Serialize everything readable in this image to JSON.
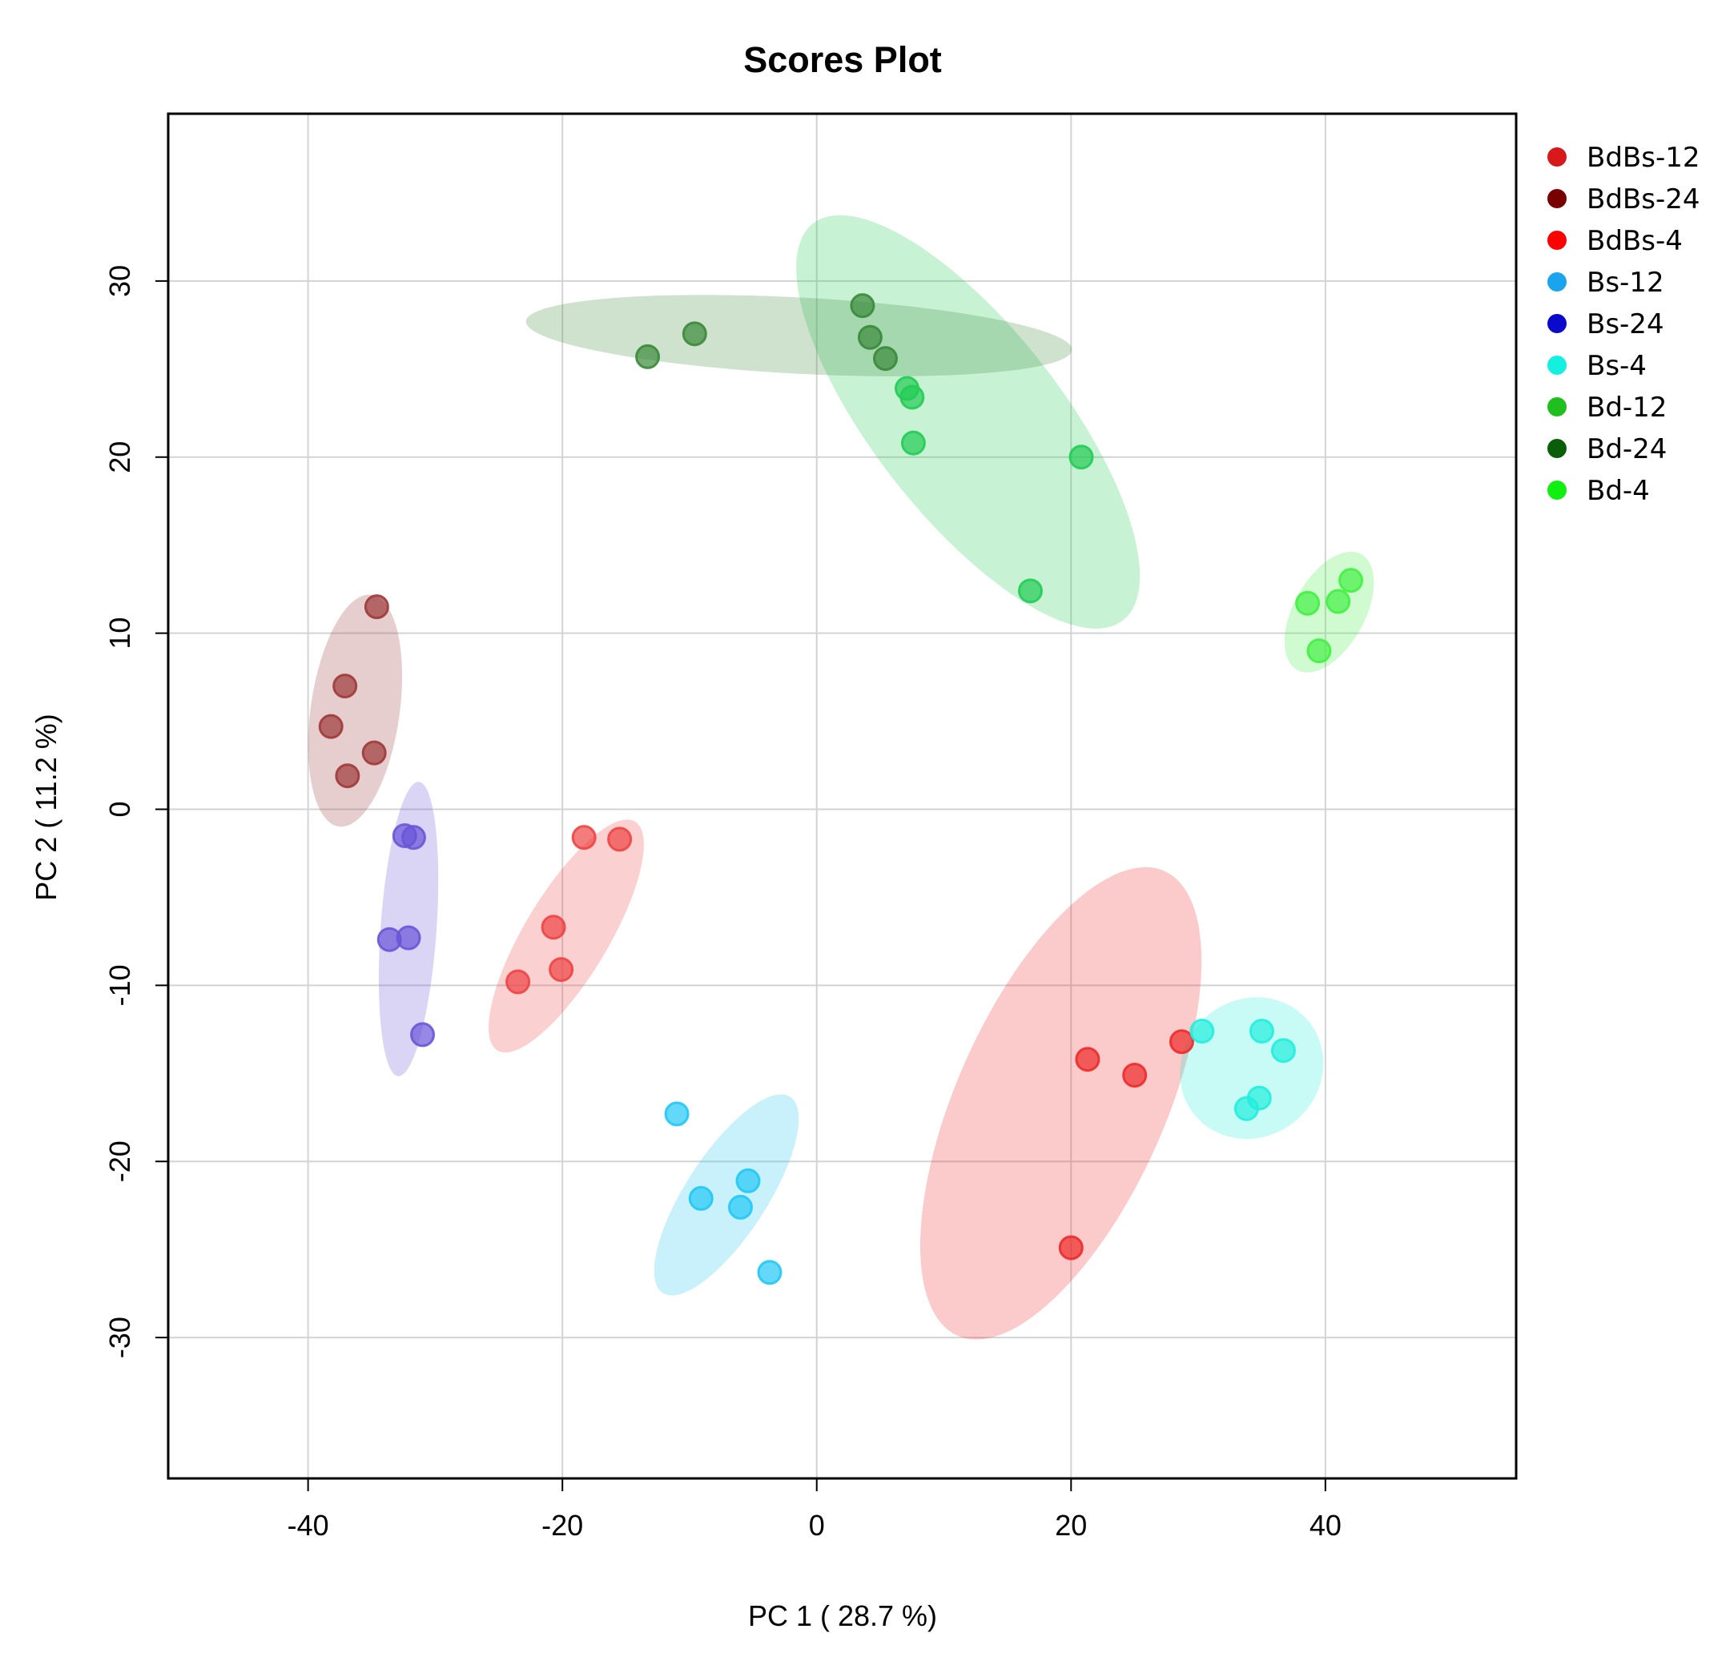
{
  "chart_data": {
    "type": "scatter",
    "title": "Scores Plot",
    "xlabel": "PC 1 ( 28.7 %)",
    "ylabel": "PC 2 ( 11.2 %)",
    "xlim": [
      -51,
      55
    ],
    "ylim": [
      -38,
      39.5
    ],
    "xticks": [
      -40,
      -20,
      0,
      20,
      40
    ],
    "yticks": [
      -30,
      -20,
      -10,
      0,
      10,
      20,
      30
    ],
    "xtick_labels": [
      "-40",
      "-20",
      "0",
      "20",
      "40"
    ],
    "ytick_labels": [
      "-30",
      "-20",
      "-10",
      "0",
      "10",
      "20",
      "30"
    ],
    "grid": true,
    "legend_position": "right",
    "series": [
      {
        "name": "BdBs-12",
        "color": "#EE2A2A",
        "legend_color": "#D7191C",
        "points": [
          [
            21.3,
            -14.2
          ],
          [
            25,
            -15.1
          ],
          [
            28.7,
            -13.2
          ],
          [
            20,
            -24.9
          ]
        ],
        "ellipse": {
          "cx": 19.2,
          "cy": -16.7,
          "a": 20.0,
          "b": 8.2,
          "angle": 66
        }
      },
      {
        "name": "BdBs-24",
        "color": "#9E3A3A",
        "legend_color": "#7A0000",
        "points": [
          [
            -34.6,
            11.5
          ],
          [
            -37.1,
            7
          ],
          [
            -38.2,
            4.7
          ],
          [
            -34.8,
            3.2
          ],
          [
            -36.9,
            1.9
          ]
        ],
        "ellipse": {
          "cx": -36.3,
          "cy": 5.6,
          "a": 9.2,
          "b": 3.5,
          "angle": 82
        }
      },
      {
        "name": "BdBs-4",
        "color": "#EE4444",
        "legend_color": "#FF0000",
        "points": [
          [
            -18.3,
            -1.6
          ],
          [
            -15.5,
            -1.7
          ],
          [
            -20.7,
            -6.7
          ],
          [
            -20.1,
            -9.1
          ],
          [
            -23.5,
            -9.8
          ]
        ],
        "ellipse": {
          "cx": -19.7,
          "cy": -7.2,
          "a": 10.5,
          "b": 3.3,
          "angle": 59
        }
      },
      {
        "name": "Bs-12",
        "color": "#22C8F5",
        "legend_color": "#1AA3EE",
        "points": [
          [
            -11,
            -17.3
          ],
          [
            -9.1,
            -22.1
          ],
          [
            -5.4,
            -21.1
          ],
          [
            -6,
            -22.6
          ],
          [
            -3.7,
            -26.3
          ]
        ],
        "ellipse": {
          "cx": -7.1,
          "cy": -21.9,
          "a": 9.2,
          "b": 3.2,
          "angle": 57
        }
      },
      {
        "name": "Bs-24",
        "color": "#6A55D8",
        "legend_color": "#0A0ACC",
        "points": [
          [
            -32.4,
            -1.5
          ],
          [
            -31.7,
            -1.6
          ],
          [
            -33.6,
            -7.4
          ],
          [
            -32.1,
            -7.3
          ],
          [
            -31,
            -12.8
          ]
        ],
        "ellipse": {
          "cx": -32.1,
          "cy": -6.8,
          "a": 11.6,
          "b": 2.2,
          "angle": 86
        }
      },
      {
        "name": "Bs-4",
        "color": "#22EEDD",
        "legend_color": "#14F0E0",
        "points": [
          [
            30.3,
            -12.6
          ],
          [
            35,
            -12.6
          ],
          [
            36.7,
            -13.7
          ],
          [
            34.8,
            -16.4
          ],
          [
            33.8,
            -17
          ]
        ],
        "ellipse": {
          "cx": 34.2,
          "cy": -14.7,
          "a": 5.8,
          "b": 5.4,
          "angle": 40
        }
      },
      {
        "name": "Bd-12",
        "color": "#22CC55",
        "legend_color": "#1FBF1F",
        "points": [
          [
            7.1,
            23.9
          ],
          [
            7.5,
            23.4
          ],
          [
            7.6,
            20.8
          ],
          [
            20.8,
            20
          ],
          [
            16.8,
            12.4
          ]
        ],
        "ellipse": {
          "cx": 11.9,
          "cy": 22,
          "a": 19.8,
          "b": 7.4,
          "angle": -52
        }
      },
      {
        "name": "Bd-24",
        "color": "#3A8A3A",
        "legend_color": "#0A5E0A",
        "points": [
          [
            3.6,
            28.6
          ],
          [
            4.2,
            26.8
          ],
          [
            5.4,
            25.6
          ],
          [
            -9.6,
            27
          ],
          [
            -13.3,
            25.7
          ]
        ],
        "ellipse": {
          "cx": -1.4,
          "cy": 26.9,
          "a": 21.5,
          "b": 3.0,
          "angle": -3
        }
      },
      {
        "name": "Bd-4",
        "color": "#44F044",
        "legend_color": "#11EE11",
        "points": [
          [
            38.6,
            11.7
          ],
          [
            41,
            11.8
          ],
          [
            42,
            13
          ],
          [
            39.5,
            9
          ]
        ],
        "ellipse": {
          "cx": 40.3,
          "cy": 11.2,
          "a": 5.2,
          "b": 2.8,
          "angle": 61
        }
      }
    ]
  }
}
